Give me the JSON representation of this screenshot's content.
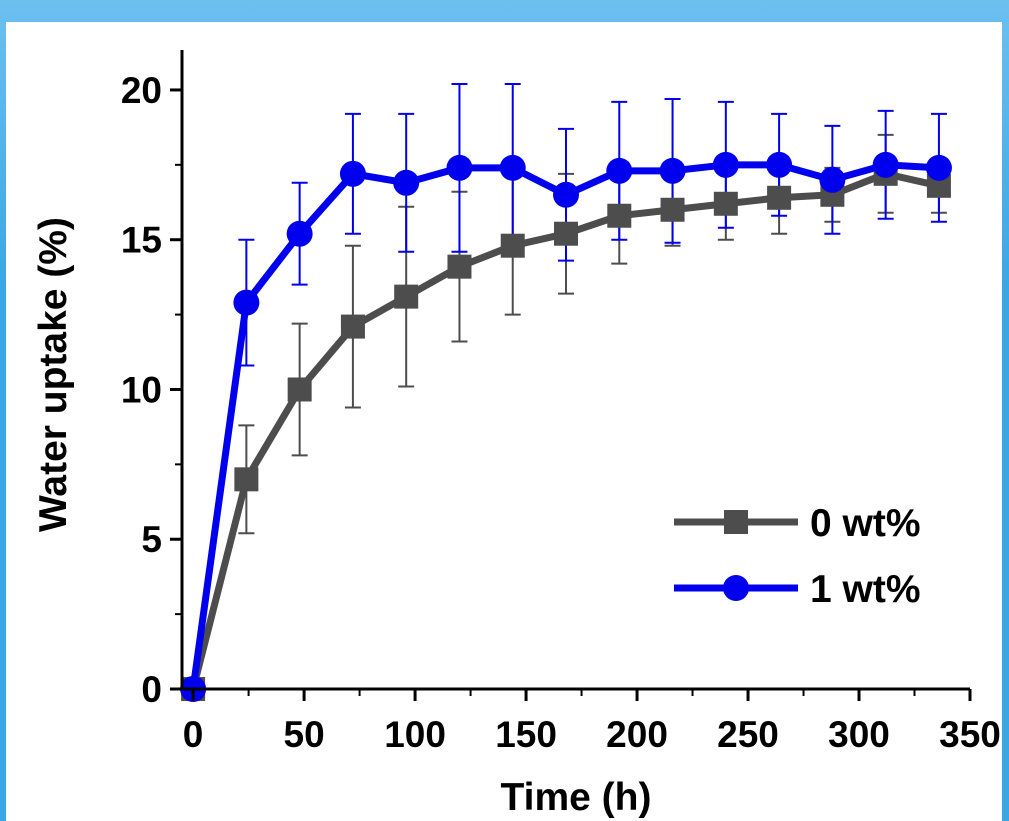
{
  "chart_data": {
    "type": "line",
    "title": "",
    "xlabel": "Time (h)",
    "ylabel": "Water uptake (%)",
    "xlim": [
      -5,
      350
    ],
    "ylim": [
      0,
      21
    ],
    "xticks": [
      0,
      50,
      100,
      150,
      200,
      250,
      300,
      350
    ],
    "yticks": [
      0,
      5,
      10,
      15,
      20
    ],
    "xtick_labels": [
      "0",
      "50",
      "100",
      "150",
      "200",
      "250",
      "300",
      "350"
    ],
    "ytick_labels": [
      "0",
      "5",
      "10",
      "15",
      "20"
    ],
    "grid": false,
    "legend_position": "lower-right",
    "x": [
      0,
      24,
      48,
      72,
      96,
      120,
      144,
      168,
      192,
      216,
      240,
      264,
      288,
      312,
      336
    ],
    "series": [
      {
        "name": "0 wt%",
        "color": "#4d4d4d",
        "marker": "square",
        "values": [
          0,
          7.0,
          10.0,
          12.1,
          13.1,
          14.1,
          14.8,
          15.2,
          15.8,
          16.0,
          16.2,
          16.4,
          16.5,
          17.2,
          16.8
        ],
        "errors": [
          0,
          1.8,
          2.2,
          2.7,
          3.0,
          2.5,
          2.3,
          2.0,
          1.6,
          1.2,
          1.2,
          1.2,
          0.9,
          1.3,
          0.9
        ]
      },
      {
        "name": "1 wt%",
        "color": "#0000ee",
        "marker": "circle",
        "values": [
          0,
          12.9,
          15.2,
          17.2,
          16.9,
          17.4,
          17.4,
          16.5,
          17.3,
          17.3,
          17.5,
          17.5,
          17.0,
          17.5,
          17.4
        ],
        "errors": [
          0,
          2.1,
          1.7,
          2.0,
          2.3,
          2.8,
          2.8,
          2.2,
          2.3,
          2.4,
          2.1,
          1.7,
          1.8,
          1.8,
          1.8
        ]
      }
    ]
  }
}
